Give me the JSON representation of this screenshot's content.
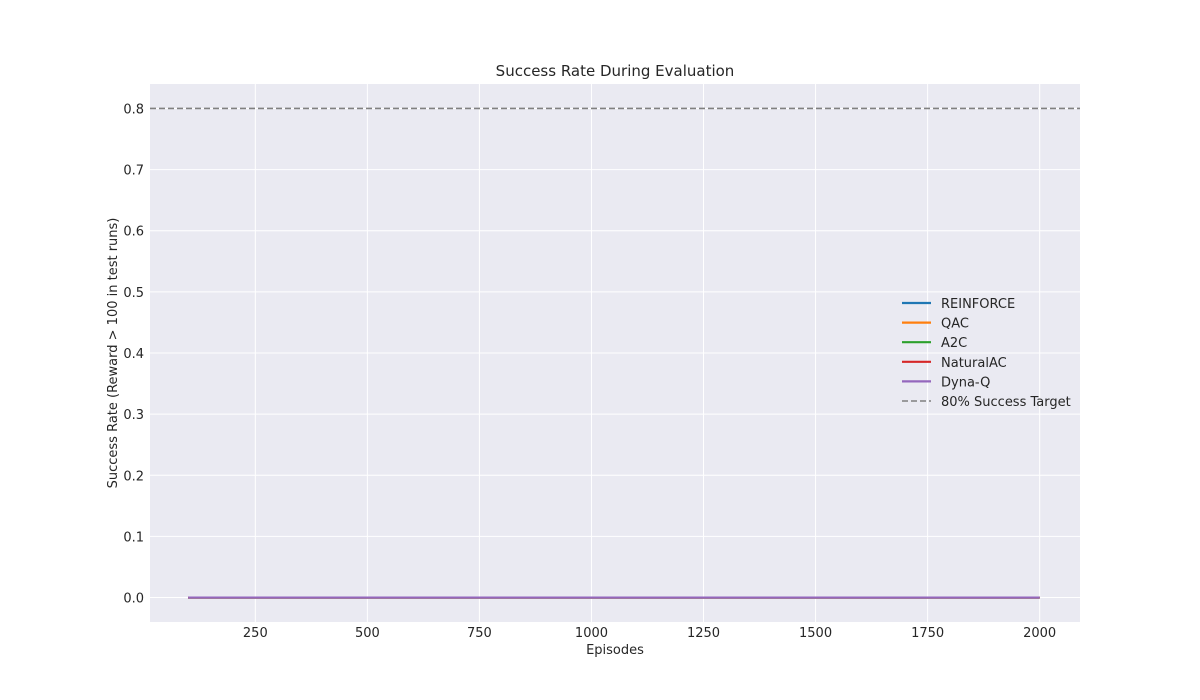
{
  "chart_data": {
    "type": "line",
    "title": "Success Rate During Evaluation",
    "xlabel": "Episodes",
    "ylabel": "Success Rate (Reward > 100 in test runs)",
    "xlim": [
      15,
      2090
    ],
    "ylim": [
      -0.04,
      0.84
    ],
    "xticks": [
      250,
      500,
      750,
      1000,
      1250,
      1500,
      1750,
      2000
    ],
    "yticks": [
      0.0,
      0.1,
      0.2,
      0.3,
      0.4,
      0.5,
      0.6,
      0.7,
      0.8
    ],
    "xtick_labels": [
      "250",
      "500",
      "750",
      "1000",
      "1250",
      "1500",
      "1750",
      "2000"
    ],
    "ytick_labels": [
      "0.0",
      "0.1",
      "0.2",
      "0.3",
      "0.4",
      "0.5",
      "0.6",
      "0.7",
      "0.8"
    ],
    "grid": true,
    "legend_placement": "center-right",
    "series": [
      {
        "name": "REINFORCE",
        "color": "#1f77b4",
        "x": [
          100,
          2000
        ],
        "y": [
          0.0,
          0.0
        ]
      },
      {
        "name": "QAC",
        "color": "#ff7f0e",
        "x": [
          100,
          2000
        ],
        "y": [
          0.0,
          0.0
        ]
      },
      {
        "name": "A2C",
        "color": "#2ca02c",
        "x": [
          100,
          2000
        ],
        "y": [
          0.0,
          0.0
        ]
      },
      {
        "name": "NaturalAC",
        "color": "#d62728",
        "x": [
          100,
          2000
        ],
        "y": [
          0.0,
          0.0
        ]
      },
      {
        "name": "Dyna-Q",
        "color": "#9467bd",
        "x": [
          100,
          2000
        ],
        "y": [
          0.0,
          0.0
        ]
      }
    ],
    "reference_line": {
      "name": "80% Success Target",
      "y": 0.8,
      "color": "#808080",
      "style": "dashed"
    }
  }
}
